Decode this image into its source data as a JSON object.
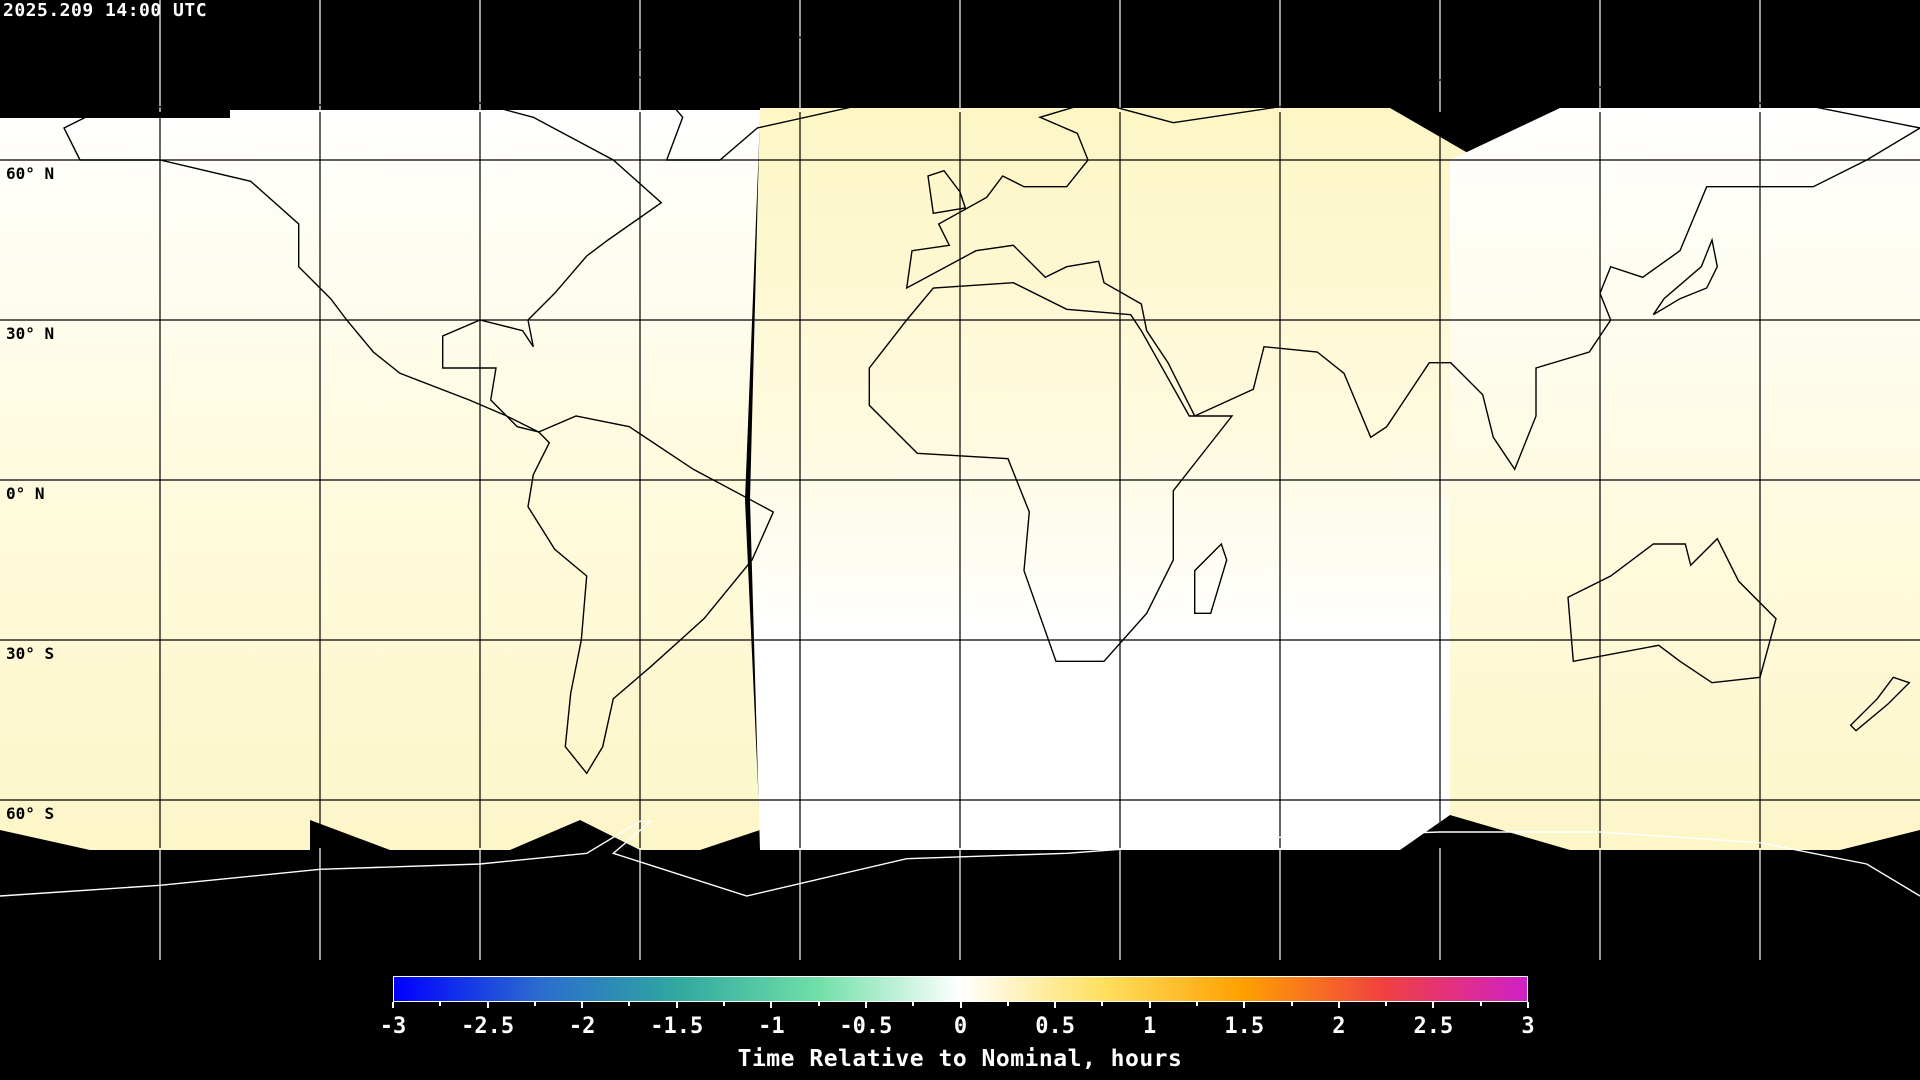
{
  "header": {
    "timestamp": "2025.209 14:00 UTC"
  },
  "map": {
    "projection": "equirectangular",
    "lat_labels": [
      "60° N",
      "30° N",
      "0° N",
      "30° S",
      "60° S"
    ],
    "background_color": "#000000",
    "coastline_color_dark": "#000000",
    "coastline_color_light": "#ffffff"
  },
  "colorbar": {
    "title": "Time Relative to Nominal, hours",
    "range": [
      -3,
      3
    ],
    "tick_labels": [
      "-3",
      "-2.5",
      "-2",
      "-1.5",
      "-1",
      "-0.5",
      "0",
      "0.5",
      "1",
      "1.5",
      "2",
      "2.5",
      "3"
    ],
    "colors": [
      "#0000ff",
      "#2a6ad0",
      "#30a8a0",
      "#70e0a8",
      "#ffffff",
      "#ffe060",
      "#ffa000",
      "#f04040",
      "#d020c8"
    ]
  }
}
